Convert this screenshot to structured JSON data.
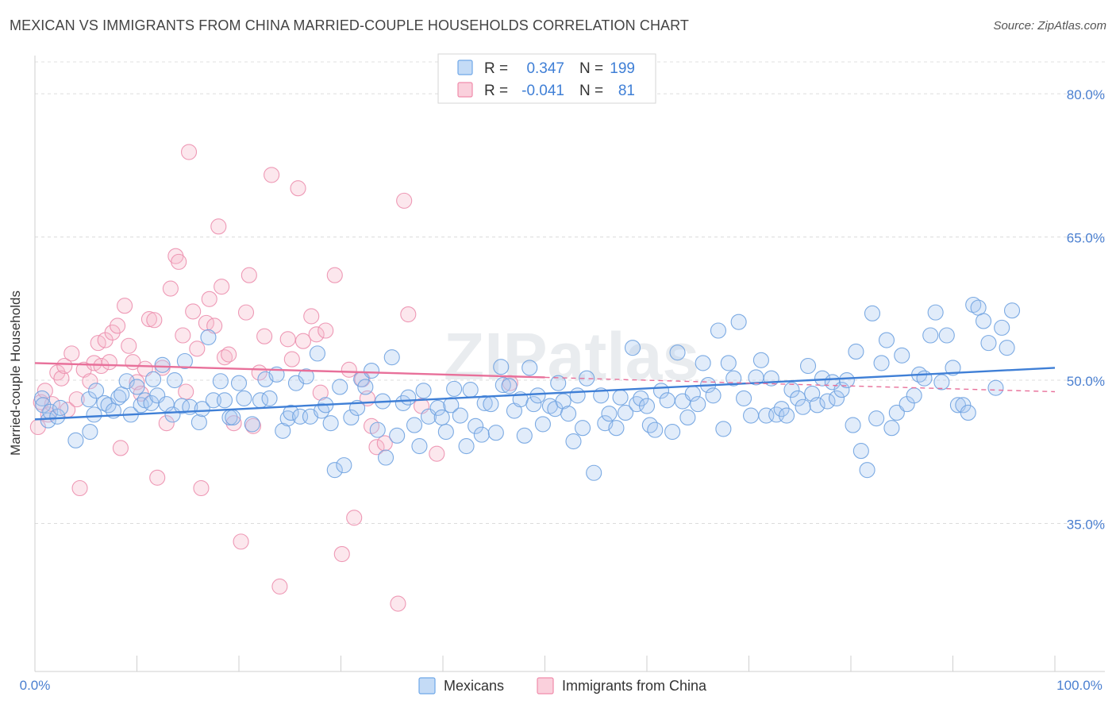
{
  "title": "MEXICAN VS IMMIGRANTS FROM CHINA MARRIED-COUPLE HOUSEHOLDS CORRELATION CHART",
  "source": "Source: ZipAtlas.com",
  "watermark": "ZIPatlas",
  "legend_top": {
    "rows": [
      {
        "r_label": "R =",
        "r_value": "0.347",
        "n_label": "N =",
        "n_value": "199",
        "color": "#6fa8e8"
      },
      {
        "r_label": "R =",
        "r_value": "-0.041",
        "n_label": "N =",
        "n_value": "81",
        "color": "#f08cab"
      }
    ]
  },
  "legend_bottom": [
    {
      "label": "Mexicans",
      "color": "#6fa8e8"
    },
    {
      "label": "Immigrants from China",
      "color": "#f08cab"
    }
  ],
  "colors": {
    "blue": "#3f7fd6",
    "pink": "#e8709a",
    "axis_text": "#4a7fd0"
  },
  "chart_data": {
    "type": "scatter",
    "title": "MEXICAN VS IMMIGRANTS FROM CHINA MARRIED-COUPLE HOUSEHOLDS CORRELATION CHART",
    "xlabel": "",
    "ylabel": "Married-couple Households",
    "xlim": [
      0,
      100
    ],
    "ylim": [
      19.5,
      84
    ],
    "x_tick_labels": [
      "0.0%",
      "100.0%"
    ],
    "y_ticks": [
      35,
      50,
      65,
      80
    ],
    "y_tick_labels": [
      "35.0%",
      "50.0%",
      "65.0%",
      "80.0%"
    ],
    "grid": true,
    "legend_position": "top-center",
    "series": [
      {
        "name": "Mexicans",
        "trend": {
          "x": [
            0,
            100
          ],
          "y": [
            45.9,
            51.3
          ]
        },
        "points": [
          [
            0.7,
            48.1
          ],
          [
            0.8,
            47.4
          ],
          [
            1.3,
            45.8
          ],
          [
            1.5,
            46.7
          ],
          [
            2.2,
            46.2
          ],
          [
            2.5,
            47.1
          ],
          [
            4,
            43.7
          ],
          [
            5.3,
            48.0
          ],
          [
            5.4,
            44.6
          ],
          [
            5.8,
            46.4
          ],
          [
            6,
            48.9
          ],
          [
            6.8,
            47.6
          ],
          [
            7.2,
            47.4
          ],
          [
            7.7,
            46.8
          ],
          [
            8.2,
            48.2
          ],
          [
            8.5,
            48.5
          ],
          [
            9,
            49.9
          ],
          [
            9.4,
            46.4
          ],
          [
            10,
            49.3
          ],
          [
            10.4,
            47.4
          ],
          [
            10.8,
            47.9
          ],
          [
            11.4,
            47.6
          ],
          [
            11.6,
            50.1
          ],
          [
            12.0,
            48.4
          ],
          [
            12.5,
            51.6
          ],
          [
            12.9,
            47.5
          ],
          [
            13.5,
            46.4
          ],
          [
            13.7,
            50.0
          ],
          [
            14.4,
            47.3
          ],
          [
            14.7,
            52.0
          ],
          [
            15.2,
            47.2
          ],
          [
            16.1,
            45.6
          ],
          [
            16.4,
            47.0
          ],
          [
            17.0,
            54.5
          ],
          [
            17.5,
            47.9
          ],
          [
            18.2,
            49.9
          ],
          [
            18.6,
            47.9
          ],
          [
            19.1,
            46.1
          ],
          [
            19.4,
            46.1
          ],
          [
            20.0,
            49.7
          ],
          [
            20.5,
            48.1
          ],
          [
            21.3,
            45.4
          ],
          [
            22.1,
            47.9
          ],
          [
            22.6,
            50.1
          ],
          [
            23.0,
            48.1
          ],
          [
            23.7,
            50.6
          ],
          [
            24.3,
            44.7
          ],
          [
            24.8,
            46.0
          ],
          [
            25.1,
            46.6
          ],
          [
            25.6,
            49.7
          ],
          [
            26.0,
            46.2
          ],
          [
            26.6,
            50.4
          ],
          [
            27.0,
            46.2
          ],
          [
            27.7,
            52.8
          ],
          [
            28.1,
            46.8
          ],
          [
            28.5,
            47.4
          ],
          [
            29.0,
            45.5
          ],
          [
            29.4,
            40.6
          ],
          [
            29.9,
            49.3
          ],
          [
            30.3,
            41.1
          ],
          [
            31.0,
            46.1
          ],
          [
            31.6,
            47.1
          ],
          [
            32.0,
            50.1
          ],
          [
            32.4,
            49.3
          ],
          [
            33.0,
            51.0
          ],
          [
            33.6,
            44.8
          ],
          [
            34.1,
            47.8
          ],
          [
            34.4,
            41.9
          ],
          [
            35.0,
            52.4
          ],
          [
            35.5,
            44.2
          ],
          [
            36.1,
            47.6
          ],
          [
            36.6,
            48.2
          ],
          [
            37.2,
            45.3
          ],
          [
            37.7,
            43.1
          ],
          [
            38.1,
            48.9
          ],
          [
            38.6,
            46.2
          ],
          [
            39.5,
            47.1
          ],
          [
            39.9,
            46.1
          ],
          [
            40.3,
            44.6
          ],
          [
            40.8,
            47.4
          ],
          [
            41.1,
            49.1
          ],
          [
            41.7,
            46.3
          ],
          [
            42.3,
            43.1
          ],
          [
            42.7,
            49.0
          ],
          [
            43.2,
            45.2
          ],
          [
            43.8,
            44.3
          ],
          [
            44.1,
            47.6
          ],
          [
            44.7,
            47.5
          ],
          [
            45.2,
            44.5
          ],
          [
            45.7,
            51.4
          ],
          [
            45.9,
            49.5
          ],
          [
            46.5,
            49.4
          ],
          [
            47.0,
            46.8
          ],
          [
            47.6,
            48.0
          ],
          [
            48.0,
            44.2
          ],
          [
            48.5,
            51.3
          ],
          [
            48.9,
            47.5
          ],
          [
            49.3,
            48.4
          ],
          [
            49.8,
            45.4
          ],
          [
            50.5,
            47.3
          ],
          [
            51.0,
            47.0
          ],
          [
            51.3,
            49.7
          ],
          [
            51.8,
            47.8
          ],
          [
            52.3,
            46.5
          ],
          [
            52.8,
            43.6
          ],
          [
            53.2,
            48.4
          ],
          [
            53.7,
            45.0
          ],
          [
            54.1,
            50.2
          ],
          [
            54.8,
            40.3
          ],
          [
            55.5,
            48.4
          ],
          [
            55.9,
            45.5
          ],
          [
            56.3,
            46.5
          ],
          [
            57.0,
            45.0
          ],
          [
            57.4,
            48.2
          ],
          [
            57.9,
            46.6
          ],
          [
            58.6,
            53.4
          ],
          [
            59.0,
            47.5
          ],
          [
            59.4,
            48.1
          ],
          [
            60.0,
            47.3
          ],
          [
            60.3,
            45.3
          ],
          [
            60.8,
            44.8
          ],
          [
            61.4,
            48.9
          ],
          [
            62.0,
            47.9
          ],
          [
            62.5,
            44.6
          ],
          [
            63.0,
            52.9
          ],
          [
            63.5,
            47.8
          ],
          [
            64.0,
            46.1
          ],
          [
            64.5,
            48.6
          ],
          [
            65.0,
            47.5
          ],
          [
            65.5,
            51.8
          ],
          [
            66.0,
            49.5
          ],
          [
            66.5,
            48.4
          ],
          [
            67.0,
            55.2
          ],
          [
            67.5,
            44.9
          ],
          [
            68.0,
            51.8
          ],
          [
            68.5,
            50.2
          ],
          [
            69.0,
            56.1
          ],
          [
            69.5,
            48.1
          ],
          [
            70.2,
            46.3
          ],
          [
            70.7,
            50.3
          ],
          [
            71.2,
            52.1
          ],
          [
            71.7,
            46.3
          ],
          [
            72.2,
            50.2
          ],
          [
            72.7,
            46.4
          ],
          [
            73.2,
            47.0
          ],
          [
            73.7,
            46.3
          ],
          [
            74.2,
            49.0
          ],
          [
            74.8,
            48.1
          ],
          [
            75.3,
            47.2
          ],
          [
            75.8,
            51.5
          ],
          [
            76.2,
            48.6
          ],
          [
            76.7,
            47.4
          ],
          [
            77.2,
            50.2
          ],
          [
            77.7,
            47.8
          ],
          [
            78.2,
            49.8
          ],
          [
            78.6,
            48.1
          ],
          [
            79.1,
            49.0
          ],
          [
            79.6,
            50.0
          ],
          [
            80.2,
            45.3
          ],
          [
            80.5,
            53.0
          ],
          [
            81.0,
            42.6
          ],
          [
            81.6,
            40.6
          ],
          [
            82.1,
            57.0
          ],
          [
            82.5,
            46.0
          ],
          [
            83.0,
            51.8
          ],
          [
            83.5,
            54.2
          ],
          [
            84.0,
            45.0
          ],
          [
            84.5,
            46.6
          ],
          [
            85.0,
            52.6
          ],
          [
            85.5,
            47.5
          ],
          [
            86.2,
            48.4
          ],
          [
            86.7,
            50.6
          ],
          [
            87.2,
            50.2
          ],
          [
            87.8,
            54.7
          ],
          [
            88.3,
            57.1
          ],
          [
            88.9,
            49.8
          ],
          [
            89.4,
            54.7
          ],
          [
            90.0,
            51.3
          ],
          [
            90.5,
            47.4
          ],
          [
            91.0,
            47.4
          ],
          [
            91.5,
            46.6
          ],
          [
            92.0,
            57.9
          ],
          [
            92.5,
            57.6
          ],
          [
            93.0,
            56.2
          ],
          [
            93.5,
            53.9
          ],
          [
            94.2,
            49.2
          ],
          [
            94.8,
            55.5
          ],
          [
            95.3,
            53.4
          ],
          [
            95.8,
            57.3
          ]
        ]
      },
      {
        "name": "Immigrants from China",
        "trend": {
          "x": [
            0,
            50
          ],
          "y": [
            51.8,
            50.3
          ]
        },
        "trend_dashed": {
          "x": [
            50,
            100
          ],
          "y": [
            50.3,
            48.8
          ]
        },
        "points": [
          [
            0.3,
            45.1
          ],
          [
            0.6,
            47.7
          ],
          [
            1.0,
            48.9
          ],
          [
            1.3,
            46.4
          ],
          [
            1.7,
            47.5
          ],
          [
            2.2,
            50.8
          ],
          [
            2.6,
            50.2
          ],
          [
            2.9,
            51.5
          ],
          [
            3.2,
            46.9
          ],
          [
            3.6,
            52.8
          ],
          [
            4.1,
            48.0
          ],
          [
            4.4,
            38.7
          ],
          [
            4.8,
            51.1
          ],
          [
            5.4,
            49.9
          ],
          [
            5.8,
            51.8
          ],
          [
            6.2,
            53.9
          ],
          [
            6.5,
            51.5
          ],
          [
            6.9,
            54.2
          ],
          [
            7.3,
            51.9
          ],
          [
            7.6,
            55.0
          ],
          [
            8.1,
            55.7
          ],
          [
            8.4,
            42.9
          ],
          [
            8.8,
            57.8
          ],
          [
            9.2,
            53.6
          ],
          [
            9.6,
            51.9
          ],
          [
            10.0,
            49.8
          ],
          [
            10.4,
            48.6
          ],
          [
            10.8,
            51.2
          ],
          [
            11.2,
            56.4
          ],
          [
            11.7,
            56.3
          ],
          [
            12.0,
            39.8
          ],
          [
            12.5,
            51.3
          ],
          [
            12.9,
            45.5
          ],
          [
            13.3,
            59.6
          ],
          [
            13.8,
            63.0
          ],
          [
            14.1,
            62.4
          ],
          [
            14.5,
            54.7
          ],
          [
            14.8,
            48.8
          ],
          [
            15.1,
            73.9
          ],
          [
            15.5,
            57.2
          ],
          [
            15.9,
            53.3
          ],
          [
            16.3,
            38.7
          ],
          [
            16.8,
            56.0
          ],
          [
            17.1,
            58.5
          ],
          [
            17.6,
            55.7
          ],
          [
            18.0,
            66.1
          ],
          [
            18.3,
            59.8
          ],
          [
            18.6,
            52.4
          ],
          [
            19.0,
            52.7
          ],
          [
            19.5,
            45.5
          ],
          [
            20.2,
            33.1
          ],
          [
            20.7,
            57.1
          ],
          [
            21.0,
            61.0
          ],
          [
            21.4,
            45.2
          ],
          [
            22.0,
            50.8
          ],
          [
            22.5,
            54.6
          ],
          [
            23.2,
            71.5
          ],
          [
            24.0,
            28.4
          ],
          [
            24.8,
            54.3
          ],
          [
            25.2,
            52.2
          ],
          [
            25.8,
            70.1
          ],
          [
            26.3,
            54.1
          ],
          [
            27.1,
            56.7
          ],
          [
            27.6,
            54.8
          ],
          [
            28.0,
            48.7
          ],
          [
            28.5,
            55.2
          ],
          [
            29.4,
            61.0
          ],
          [
            30.1,
            31.8
          ],
          [
            30.8,
            51.1
          ],
          [
            31.3,
            35.6
          ],
          [
            32.1,
            50.1
          ],
          [
            32.6,
            48.1
          ],
          [
            33.0,
            45.2
          ],
          [
            33.5,
            43.0
          ],
          [
            34.3,
            43.4
          ],
          [
            35.6,
            26.6
          ],
          [
            36.2,
            68.8
          ],
          [
            36.6,
            56.9
          ],
          [
            37.9,
            47.3
          ],
          [
            39.4,
            42.3
          ],
          [
            46.6,
            49.7
          ]
        ]
      }
    ]
  }
}
